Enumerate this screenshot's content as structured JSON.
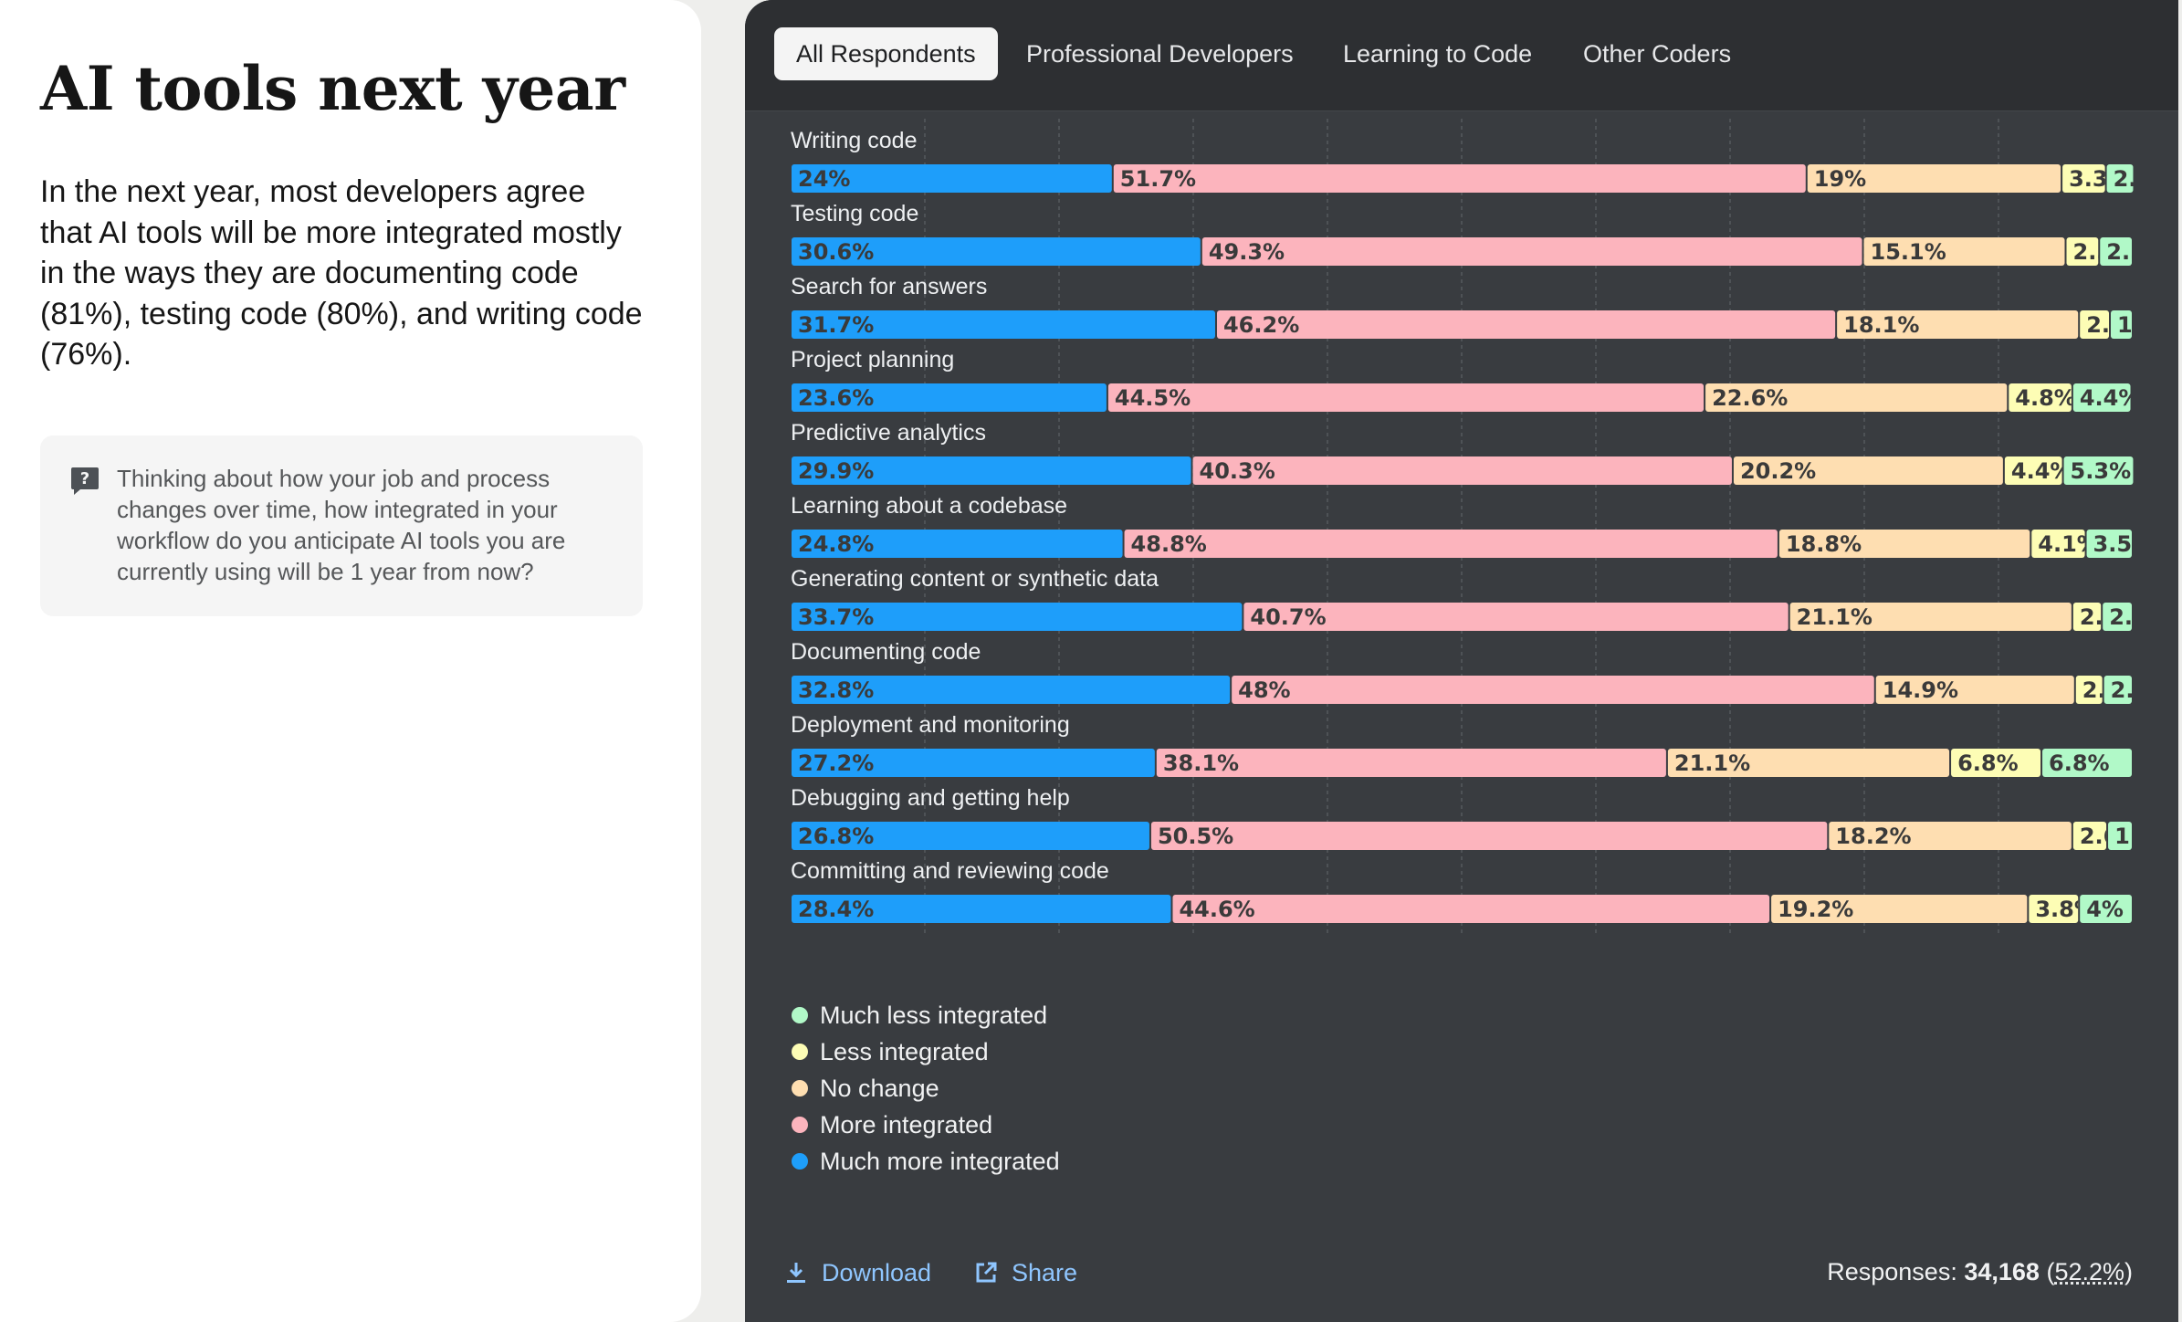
{
  "intro": {
    "title": "AI tools next year",
    "text": "In the next year, most developers agree that AI tools will be more integrated mostly in the ways they are documenting code (81%), testing code (80%), and writing code (76%).",
    "question": "Thinking about how your job and process changes over time, how integrated in your workflow do you anticipate AI tools you are currently using will be 1 year from now?"
  },
  "tabs": [
    "All Respondents",
    "Professional Developers",
    "Learning to Code",
    "Other Coders"
  ],
  "active_tab": "All Respondents",
  "footer": {
    "download_label": "Download",
    "share_label": "Share",
    "responses_label": "Responses:",
    "responses_count": "34,168",
    "responses_pct": "52.2%"
  },
  "colors": {
    "Much more integrated": "#1e9efa",
    "More integrated": "#fcb4bd",
    "No change": "#fedeb1",
    "Less integrated": "#fdfdb5",
    "Much less integrated": "#b1f9c8"
  },
  "chart_data": {
    "type": "bar",
    "orientation": "horizontal",
    "stacked": true,
    "xlim": [
      0,
      100
    ],
    "grid": true,
    "legend_position": "bottom-left",
    "categories": [
      "Writing code",
      "Testing code",
      "Search for answers",
      "Project planning",
      "Predictive analytics",
      "Learning about a codebase",
      "Generating content or synthetic data",
      "Documenting code",
      "Deployment and monitoring",
      "Debugging and getting help",
      "Committing and reviewing code"
    ],
    "series": [
      {
        "name": "Much more integrated",
        "values": [
          24,
          30.6,
          31.7,
          23.6,
          29.9,
          24.8,
          33.7,
          32.8,
          27.2,
          26.8,
          28.4
        ]
      },
      {
        "name": "More integrated",
        "values": [
          51.7,
          49.3,
          46.2,
          44.5,
          40.3,
          48.8,
          40.7,
          48,
          38.1,
          50.5,
          44.6
        ]
      },
      {
        "name": "No change",
        "values": [
          19,
          15.1,
          18.1,
          22.6,
          20.2,
          18.8,
          21.1,
          14.9,
          21.1,
          18.2,
          19.2
        ]
      },
      {
        "name": "Less integrated",
        "values": [
          3.3,
          2.5,
          2.3,
          4.8,
          4.4,
          4.1,
          2.2,
          2.1,
          6.8,
          2.6,
          3.8
        ]
      },
      {
        "name": "Much less integrated",
        "values": [
          2.1,
          2.5,
          1.7,
          4.4,
          5.3,
          3.5,
          2.3,
          2.2,
          6.8,
          1.9,
          4
        ]
      }
    ],
    "legend_order": [
      "Much less integrated",
      "Less integrated",
      "No change",
      "More integrated",
      "Much more integrated"
    ]
  }
}
